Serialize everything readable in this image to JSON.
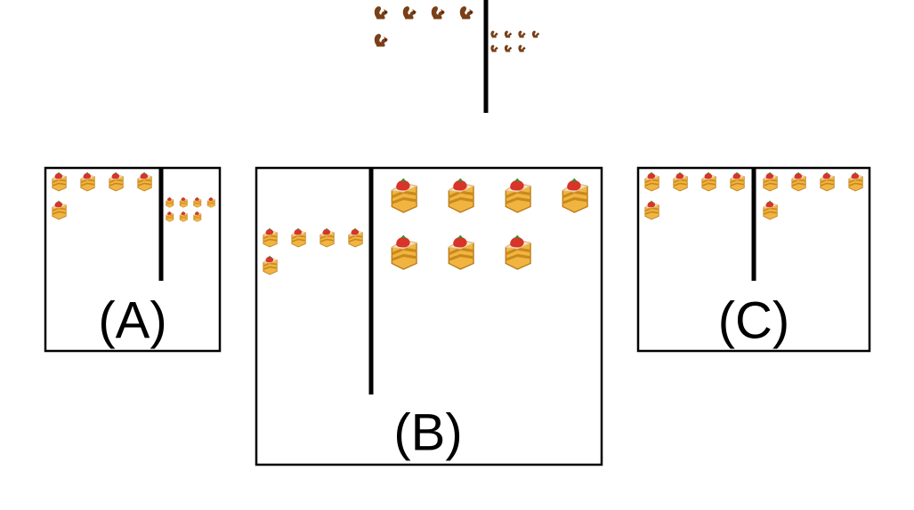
{
  "prompt": {
    "left_icon": "squirrel-icon",
    "left_count": 5,
    "right_icon": "squirrel-icon",
    "right_count": 7
  },
  "options": [
    {
      "label": "(A)",
      "icon": "cake-icon",
      "left_count": 5,
      "right_count": 7
    },
    {
      "label": "(B)",
      "icon": "cake-icon",
      "left_count": 5,
      "right_count": 7
    },
    {
      "label": "(C)",
      "icon": "cake-icon",
      "left_count": 5,
      "right_count": 5
    }
  ],
  "colors": {
    "squirrel": "#7a3f17",
    "cake_sponge": "#f2b441",
    "cake_layer": "#c98a1c",
    "cake_cream": "#fbe6c0",
    "strawberry": "#d8342a",
    "outline": "#000000"
  }
}
